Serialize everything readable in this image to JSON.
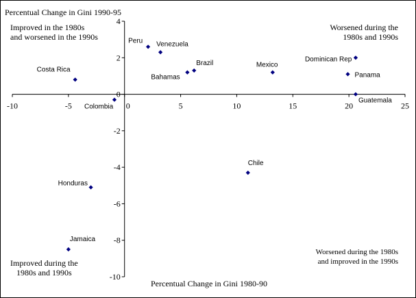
{
  "chart_data": {
    "type": "scatter",
    "xlabel": "Percentual Change in Gini 1980-90",
    "ylabel": "Percentual Change in Gini 1990-95",
    "xlim": [
      -10,
      25
    ],
    "ylim": [
      -10,
      4
    ],
    "xticks": [
      -10,
      -5,
      0,
      5,
      10,
      15,
      20,
      25
    ],
    "yticks": [
      4,
      2,
      0,
      -2,
      -4,
      -6,
      -8,
      -10
    ],
    "grid": false,
    "legend": "none",
    "marker_color": "#000080",
    "points": [
      {
        "label": "Peru",
        "x": 2.1,
        "y": 2.6
      },
      {
        "label": "Venezuela",
        "x": 3.2,
        "y": 2.3
      },
      {
        "label": "Brazil",
        "x": 6.2,
        "y": 1.3
      },
      {
        "label": "Bahamas",
        "x": 5.6,
        "y": 1.2
      },
      {
        "label": "Mexico",
        "x": 13.2,
        "y": 1.2
      },
      {
        "label": "Dominican Rep",
        "x": 20.6,
        "y": 2.0
      },
      {
        "label": "Panama",
        "x": 19.9,
        "y": 1.1
      },
      {
        "label": "Guatemala",
        "x": 20.6,
        "y": 0.0
      },
      {
        "label": "Costa Rica",
        "x": -4.4,
        "y": 0.8
      },
      {
        "label": "Colombia",
        "x": -0.9,
        "y": -0.3
      },
      {
        "label": "Chile",
        "x": 11.0,
        "y": -4.3
      },
      {
        "label": "Honduras",
        "x": -3.0,
        "y": -5.1
      },
      {
        "label": "Jamaica",
        "x": -5.0,
        "y": -8.5
      }
    ],
    "annotations": {
      "upper_left": [
        "Improved in the 1980s",
        "and worsened in the 1990s"
      ],
      "upper_right": [
        "Worsened during the",
        "1980s and 1990s"
      ],
      "lower_left": [
        "Improved during the",
        "1980s and 1990s"
      ],
      "lower_right": [
        "Worsened during the 1980s",
        "and improved in the 1990s"
      ]
    }
  }
}
